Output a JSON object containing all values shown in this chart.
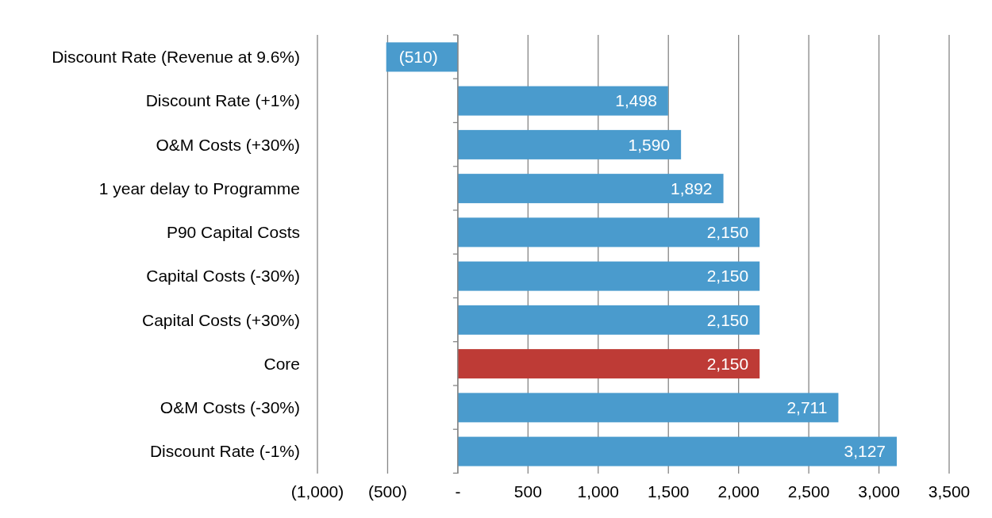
{
  "chart_data": {
    "type": "bar",
    "orientation": "horizontal",
    "categories": [
      "Discount Rate (Revenue at 9.6%)",
      "Discount Rate (+1%)",
      "O&M Costs (+30%)",
      "1 year delay to Programme",
      "P90 Capital Costs",
      "Capital Costs (-30%)",
      "Capital Costs (+30%)",
      "Core",
      "O&M Costs (-30%)",
      "Discount Rate (-1%)"
    ],
    "values": [
      -510,
      1498,
      1590,
      1892,
      2150,
      2150,
      2150,
      2150,
      2711,
      3127
    ],
    "colors": [
      "#4a9bcd",
      "#4a9bcd",
      "#4a9bcd",
      "#4a9bcd",
      "#4a9bcd",
      "#4a9bcd",
      "#4a9bcd",
      "#be3b36",
      "#4a9bcd",
      "#4a9bcd"
    ],
    "value_labels": [
      "(510)",
      "1,498",
      "1,590",
      "1,892",
      "2,150",
      "2,150",
      "2,150",
      "2,150",
      "2,711",
      "3,127"
    ],
    "xlim": [
      -1000,
      3500
    ],
    "xticks": [
      {
        "value": -1000,
        "label": "(1,000)"
      },
      {
        "value": -500,
        "label": "(500)"
      },
      {
        "value": 0,
        "label": "-"
      },
      {
        "value": 500,
        "label": "500"
      },
      {
        "value": 1000,
        "label": "1,000"
      },
      {
        "value": 1500,
        "label": "1,500"
      },
      {
        "value": 2000,
        "label": "2,000"
      },
      {
        "value": 2500,
        "label": "2,500"
      },
      {
        "value": 3000,
        "label": "3,000"
      },
      {
        "value": 3500,
        "label": "3,500"
      }
    ],
    "grid": "x"
  }
}
